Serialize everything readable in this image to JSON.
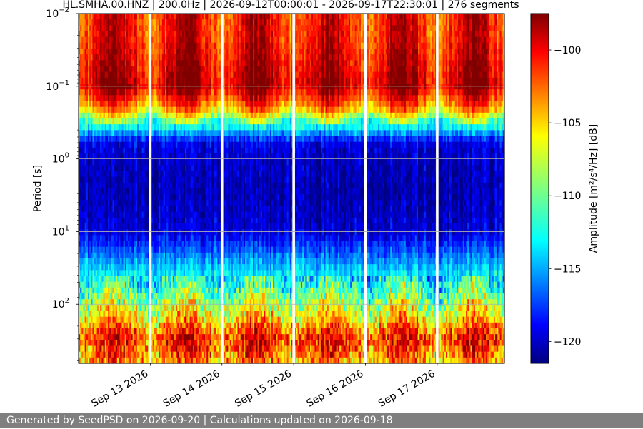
{
  "footer": {
    "text": "Generated by SeedPSD on 2026-09-20 | Calculations updated on 2026-09-18"
  },
  "chart_data": {
    "type": "heatmap",
    "title": "HL.SMHA.00.HNZ | 200.0Hz | 2026-09-12T00:00:01 - 2026-09-17T22:30:01 | 276 segments",
    "xlabel": "",
    "ylabel": "Period [s]",
    "x_type": "time",
    "x_range": [
      "2026-09-12T00:00:01",
      "2026-09-17T22:30:01"
    ],
    "x_ticks": [
      {
        "label": "Sep 13 2026",
        "date": "2026-09-13T00:00:00"
      },
      {
        "label": "Sep 14 2026",
        "date": "2026-09-14T00:00:00"
      },
      {
        "label": "Sep 15 2026",
        "date": "2026-09-15T00:00:00"
      },
      {
        "label": "Sep 16 2026",
        "date": "2026-09-16T00:00:00"
      },
      {
        "label": "Sep 17 2026",
        "date": "2026-09-17T00:00:00"
      }
    ],
    "y_scale": "log",
    "y_inverted": true,
    "y_range": [
      0.01,
      650
    ],
    "y_ticks": [
      {
        "base": "10",
        "exp": "−2",
        "value": 0.01
      },
      {
        "base": "10",
        "exp": "−1",
        "value": 0.1
      },
      {
        "base": "10",
        "exp": "0",
        "value": 1
      },
      {
        "base": "10",
        "exp": "1",
        "value": 10
      },
      {
        "base": "10",
        "exp": "2",
        "value": 100
      }
    ],
    "grid": "horizontal",
    "colorbar": {
      "label": "Amplitude [m²/s⁴/Hz] [dB]",
      "colormap": "jet",
      "range": [
        -121.5,
        -97.5
      ],
      "ticks": [
        {
          "label": "−100",
          "value": -100
        },
        {
          "label": "−105",
          "value": -105
        },
        {
          "label": "−110",
          "value": -110
        },
        {
          "label": "−115",
          "value": -115
        },
        {
          "label": "−120",
          "value": -120
        }
      ]
    },
    "gaps": [
      "2026-09-13T00:00:00",
      "2026-09-14T00:00:00",
      "2026-09-15T00:00:00",
      "2026-09-16T00:00:00",
      "2026-09-17T00:00:00"
    ],
    "band_profile": [
      {
        "period": 0.01,
        "db": -101
      },
      {
        "period": 0.02,
        "db": -101
      },
      {
        "period": 0.05,
        "db": -100
      },
      {
        "period": 0.1,
        "db": -99
      },
      {
        "period": 0.2,
        "db": -104
      },
      {
        "period": 0.35,
        "db": -112
      },
      {
        "period": 0.6,
        "db": -119
      },
      {
        "period": 1,
        "db": -120
      },
      {
        "period": 3,
        "db": -120.5
      },
      {
        "period": 10,
        "db": -119.5
      },
      {
        "period": 25,
        "db": -115
      },
      {
        "period": 60,
        "db": -111
      },
      {
        "period": 150,
        "db": -106
      },
      {
        "period": 300,
        "db": -101
      },
      {
        "period": 650,
        "db": -104
      }
    ]
  }
}
